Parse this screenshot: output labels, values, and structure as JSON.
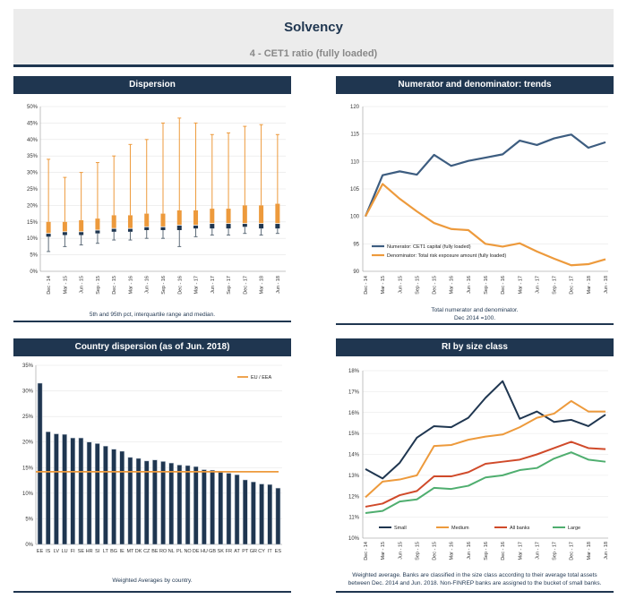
{
  "page": {
    "title": "Solvency",
    "subtitle": "4 - CET1 ratio (fully loaded)"
  },
  "panels": {
    "dispersion": {
      "title": "Dispersion",
      "caption": "5th and 95th pct, interquartile range and median."
    },
    "trends": {
      "title": "Numerator and denominator: trends",
      "caption_line1": "Total numerator and denominator.",
      "caption_line2": "Dec 2014 =100."
    },
    "country": {
      "title": "Country dispersion (as of Jun. 2018)",
      "caption": "Weighted Averages by country."
    },
    "size": {
      "title": "RI by size class",
      "caption_line1": "Weighted average. Banks are classified in the size class according to their average total assets",
      "caption_line2": "between Dec. 2014 and Jun. 2018. Non-FINREP banks are assigned to the bucket of small banks."
    }
  },
  "colors": {
    "navy": "#1f3650",
    "orange": "#ed9a3c",
    "grey": "#5f6d7a",
    "red": "#d04a2a",
    "green": "#4fae6f",
    "steel": "#3d5d80"
  },
  "chart_data": [
    {
      "id": "dispersion",
      "type": "boxplot",
      "x": [
        "Dec - 14",
        "Mar - 15",
        "Jun - 15",
        "Sep - 15",
        "Dec - 15",
        "Mar - 16",
        "Jun - 16",
        "Sep - 16",
        "Dec - 16",
        "Mar - 17",
        "Jun - 17",
        "Sep - 17",
        "Dec - 17",
        "Mar - 18",
        "Jun - 18"
      ],
      "p5": [
        6.0,
        7.5,
        8.0,
        8.5,
        9.5,
        9.5,
        10.0,
        10.0,
        7.5,
        10.5,
        11.0,
        11.0,
        11.5,
        11.0,
        11.5
      ],
      "q1": [
        10.5,
        11.0,
        11.0,
        11.5,
        12.0,
        12.0,
        12.5,
        12.5,
        12.5,
        13.0,
        13.0,
        13.0,
        13.5,
        13.0,
        13.0
      ],
      "median": [
        11.5,
        12.0,
        12.0,
        12.5,
        13.0,
        13.0,
        13.5,
        13.5,
        14.0,
        14.0,
        14.5,
        14.5,
        14.5,
        14.5,
        14.5
      ],
      "q3": [
        15.0,
        15.0,
        15.5,
        16.0,
        17.0,
        17.0,
        17.5,
        17.5,
        18.5,
        18.5,
        19.0,
        19.0,
        20.0,
        20.0,
        20.5
      ],
      "p95": [
        34.0,
        28.5,
        30.0,
        33.0,
        35.0,
        38.5,
        40.0,
        45.0,
        46.5,
        45.0,
        41.5,
        42.0,
        44.0,
        44.5,
        41.5
      ],
      "ylim": [
        0,
        50
      ],
      "yticks": [
        "0%",
        "5%",
        "10%",
        "15%",
        "20%",
        "25%",
        "30%",
        "35%",
        "40%",
        "45%",
        "50%"
      ]
    },
    {
      "id": "trends",
      "type": "line",
      "x": [
        "Dec - 14",
        "Mar - 15",
        "Jun - 15",
        "Sep - 15",
        "Dec - 15",
        "Mar - 16",
        "Jun - 16",
        "Sep - 16",
        "Dec - 16",
        "Mar - 17",
        "Jun - 17",
        "Sep - 17",
        "Dec - 17",
        "Mar - 18",
        "Jun - 18"
      ],
      "series": [
        {
          "name": "Numerator: CET1 capital (fully loaded)",
          "color": "#3d5d80",
          "values": [
            100.0,
            107.5,
            108.2,
            107.6,
            111.2,
            109.2,
            110.1,
            110.7,
            111.3,
            113.8,
            113.0,
            114.2,
            114.9,
            112.5,
            113.5
          ]
        },
        {
          "name": "Denominator: Total risk exposure amount (fully loaded)",
          "color": "#ed9a3c",
          "values": [
            100.0,
            105.9,
            103.2,
            100.9,
            98.8,
            97.7,
            97.5,
            95.0,
            94.5,
            95.1,
            93.6,
            92.3,
            91.1,
            91.3,
            92.2
          ]
        }
      ],
      "ylim": [
        90,
        120
      ],
      "yticks": [
        "90",
        "95",
        "100",
        "105",
        "110",
        "115",
        "120"
      ]
    },
    {
      "id": "country",
      "type": "bar",
      "categories": [
        "EE",
        "IS",
        "LV",
        "LU",
        "FI",
        "SE",
        "HR",
        "SI",
        "LT",
        "BG",
        "IE",
        "MT",
        "DK",
        "CZ",
        "BE",
        "RO",
        "NL",
        "PL",
        "NO",
        "DE",
        "HU",
        "GB",
        "SK",
        "FR",
        "AT",
        "PT",
        "GR",
        "CY",
        "IT",
        "ES"
      ],
      "values": [
        31.5,
        22.0,
        21.6,
        21.5,
        20.8,
        20.8,
        20.0,
        19.7,
        19.2,
        18.6,
        18.2,
        17.0,
        16.8,
        16.3,
        16.5,
        16.2,
        15.9,
        15.5,
        15.4,
        15.2,
        14.6,
        14.5,
        14.1,
        13.9,
        13.6,
        12.6,
        12.2,
        11.8,
        11.7,
        11.0
      ],
      "reference": {
        "name": "EU / EEA",
        "value": 14.2
      },
      "ylim": [
        0,
        35
      ],
      "yticks": [
        "0%",
        "5%",
        "10%",
        "15%",
        "20%",
        "25%",
        "30%",
        "35%"
      ]
    },
    {
      "id": "size",
      "type": "line",
      "x": [
        "Dec - 14",
        "Mar - 15",
        "Jun - 15",
        "Sep - 15",
        "Dec - 15",
        "Mar - 16",
        "Jun - 16",
        "Sep - 16",
        "Dec - 16",
        "Mar - 17",
        "Jun - 17",
        "Sep - 17",
        "Dec - 17",
        "Mar - 18",
        "Jun - 18"
      ],
      "series": [
        {
          "name": "Small",
          "color": "#1f3650",
          "values": [
            13.3,
            12.85,
            13.6,
            14.8,
            15.35,
            15.3,
            15.75,
            16.7,
            17.5,
            15.7,
            16.05,
            15.55,
            15.65,
            15.35,
            15.9
          ]
        },
        {
          "name": "Medium",
          "color": "#ed9a3c",
          "values": [
            11.95,
            12.7,
            12.8,
            13.0,
            14.4,
            14.45,
            14.7,
            14.85,
            14.95,
            15.3,
            15.75,
            15.95,
            16.55,
            16.05,
            16.05
          ]
        },
        {
          "name": "All banks",
          "color": "#d04a2a",
          "values": [
            11.5,
            11.65,
            12.05,
            12.25,
            12.95,
            12.95,
            13.15,
            13.55,
            13.65,
            13.75,
            14.0,
            14.3,
            14.6,
            14.3,
            14.25
          ]
        },
        {
          "name": "Large",
          "color": "#4fae6f",
          "values": [
            11.2,
            11.3,
            11.75,
            11.85,
            12.4,
            12.35,
            12.5,
            12.9,
            13.0,
            13.25,
            13.35,
            13.8,
            14.1,
            13.75,
            13.65
          ]
        }
      ],
      "ylim": [
        10,
        18
      ],
      "yticks": [
        "10%",
        "11%",
        "12%",
        "13%",
        "14%",
        "15%",
        "16%",
        "17%",
        "18%"
      ]
    }
  ]
}
